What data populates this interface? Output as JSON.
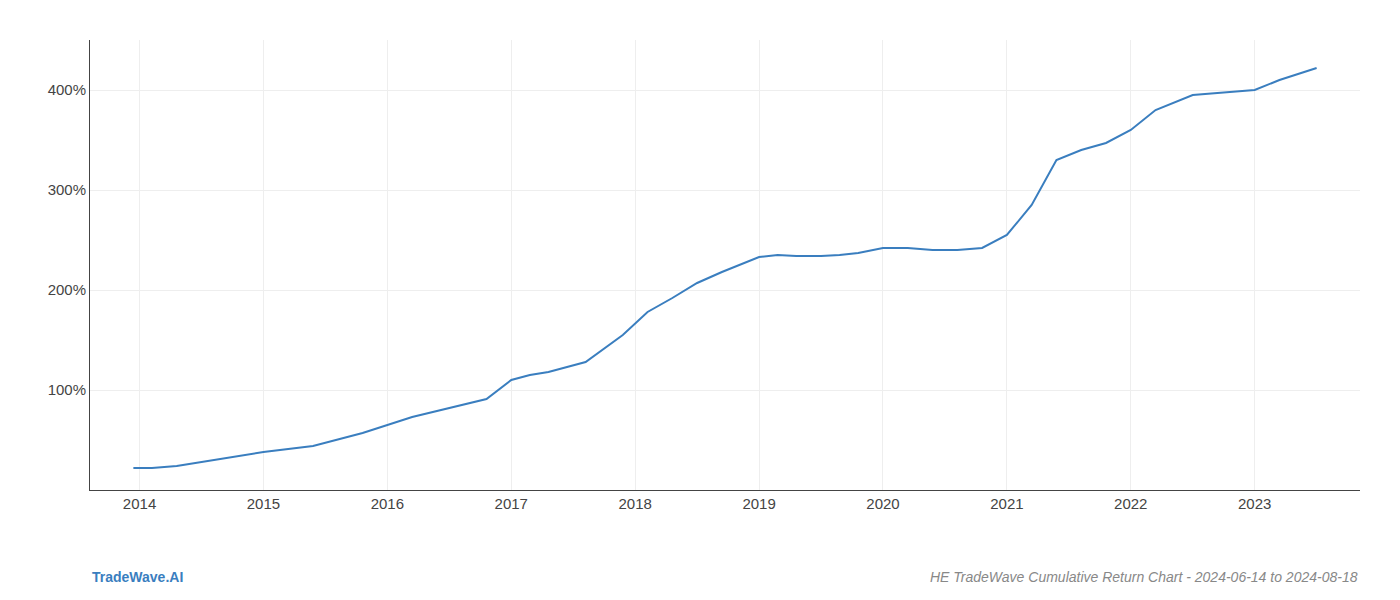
{
  "chart_data": {
    "type": "line",
    "title": "HE TradeWave Cumulative Return Chart - 2024-06-14 to 2024-08-18",
    "annotations": [
      "TradeWave.AI"
    ],
    "x": [
      2013.95,
      2014.1,
      2014.3,
      2014.6,
      2015.0,
      2015.4,
      2015.8,
      2016.2,
      2016.5,
      2016.8,
      2017.0,
      2017.15,
      2017.3,
      2017.6,
      2017.9,
      2018.1,
      2018.3,
      2018.5,
      2018.7,
      2018.9,
      2019.0,
      2019.15,
      2019.3,
      2019.5,
      2019.65,
      2019.8,
      2020.0,
      2020.2,
      2020.4,
      2020.6,
      2020.8,
      2021.0,
      2021.2,
      2021.4,
      2021.6,
      2021.8,
      2022.0,
      2022.2,
      2022.5,
      2022.8,
      2023.0,
      2023.2,
      2023.5
    ],
    "values": [
      22,
      22,
      24,
      30,
      38,
      44,
      57,
      73,
      82,
      91,
      110,
      115,
      118,
      128,
      155,
      178,
      192,
      207,
      218,
      228,
      233,
      235,
      234,
      234,
      235,
      237,
      242,
      242,
      240,
      240,
      242,
      255,
      285,
      330,
      340,
      347,
      360,
      380,
      395,
      398,
      400,
      410,
      422
    ],
    "color": "#3a7ebf",
    "xlim": [
      2013.6,
      2023.85
    ],
    "xticks": [
      2014,
      2015,
      2016,
      2017,
      2018,
      2019,
      2020,
      2021,
      2022,
      2023
    ],
    "ylim": [
      0,
      450
    ],
    "yticks": [
      {
        "value": 100,
        "label": "100%"
      },
      {
        "value": 200,
        "label": "200%"
      },
      {
        "value": 300,
        "label": "300%"
      },
      {
        "value": 400,
        "label": "400%"
      }
    ],
    "grid": true
  }
}
